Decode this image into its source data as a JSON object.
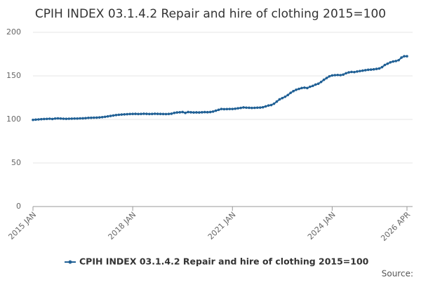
{
  "chart_data": {
    "type": "line",
    "title": "CPIH INDEX 03.1.4.2 Repair and hire of clothing 2015=100",
    "categories": [
      "2015 JAN",
      null,
      null,
      null,
      null,
      null,
      null,
      null,
      null,
      null,
      null,
      null,
      null,
      null,
      null,
      null,
      null,
      null,
      null,
      null,
      null,
      null,
      null,
      null,
      null,
      null,
      null,
      null,
      null,
      null,
      null,
      null,
      null,
      null,
      null,
      null,
      "2018 JAN",
      null,
      null,
      null,
      null,
      null,
      null,
      null,
      null,
      null,
      null,
      null,
      null,
      null,
      null,
      null,
      null,
      null,
      null,
      null,
      null,
      null,
      null,
      null,
      null,
      null,
      null,
      null,
      null,
      null,
      null,
      null,
      null,
      null,
      null,
      null,
      "2021 JAN",
      null,
      null,
      null,
      null,
      null,
      null,
      null,
      null,
      null,
      null,
      null,
      null,
      null,
      null,
      null,
      null,
      null,
      null,
      null,
      null,
      null,
      null,
      null,
      null,
      null,
      null,
      null,
      null,
      null,
      null,
      null,
      null,
      null,
      null,
      null,
      "2024 JAN",
      null,
      null,
      null,
      null,
      null,
      null,
      null,
      null,
      null,
      null,
      null,
      null,
      null,
      null,
      null,
      null,
      null,
      null,
      null,
      null,
      null,
      null,
      null,
      null,
      null,
      null,
      "2026 APR"
    ],
    "series": [
      {
        "name": "CPIH INDEX 03.1.4.2 Repair and hire of clothing 2015=100",
        "color": "#206095",
        "values": [
          99.5,
          99.8,
          100,
          100.3,
          100.5,
          100.6,
          100.8,
          100.5,
          101,
          101.2,
          101,
          100.8,
          100.7,
          100.8,
          100.9,
          101,
          101,
          101.2,
          101.3,
          101.5,
          101.8,
          101.9,
          102,
          102.1,
          102.3,
          102.6,
          103,
          103.5,
          104,
          104.5,
          105,
          105.3,
          105.6,
          105.8,
          106,
          106.2,
          106.3,
          106.4,
          106.2,
          106.3,
          106.5,
          106.4,
          106.2,
          106.3,
          106.5,
          106.4,
          106.3,
          106.2,
          106.1,
          106.3,
          106.6,
          107.5,
          108,
          108.2,
          108.5,
          107.5,
          108.5,
          108.2,
          108,
          108.1,
          108,
          108.2,
          108.4,
          108.3,
          108.5,
          109,
          110,
          111,
          112,
          111.8,
          111.9,
          112,
          112,
          112.3,
          112.8,
          113.2,
          113.8,
          113.5,
          113.4,
          113.2,
          113.3,
          113.5,
          113.6,
          114,
          115,
          116,
          116.5,
          118,
          120.5,
          123,
          124.5,
          126,
          128,
          130.5,
          132.5,
          134,
          135,
          136,
          136.5,
          136,
          137.5,
          138.5,
          140,
          141,
          143,
          145.5,
          147.5,
          149.5,
          150.5,
          150.8,
          151,
          150.8,
          151.5,
          153,
          154,
          154.5,
          154.3,
          155,
          155.5,
          156,
          156.5,
          157,
          157.2,
          157.5,
          158,
          158.5,
          160,
          162.5,
          164,
          165.5,
          166.5,
          167,
          168,
          171,
          172.5,
          172.5
        ]
      }
    ],
    "ylim": [
      0,
      200
    ],
    "yticks": [
      0,
      50,
      100,
      150,
      200
    ],
    "grid": true,
    "source": "Source:"
  }
}
